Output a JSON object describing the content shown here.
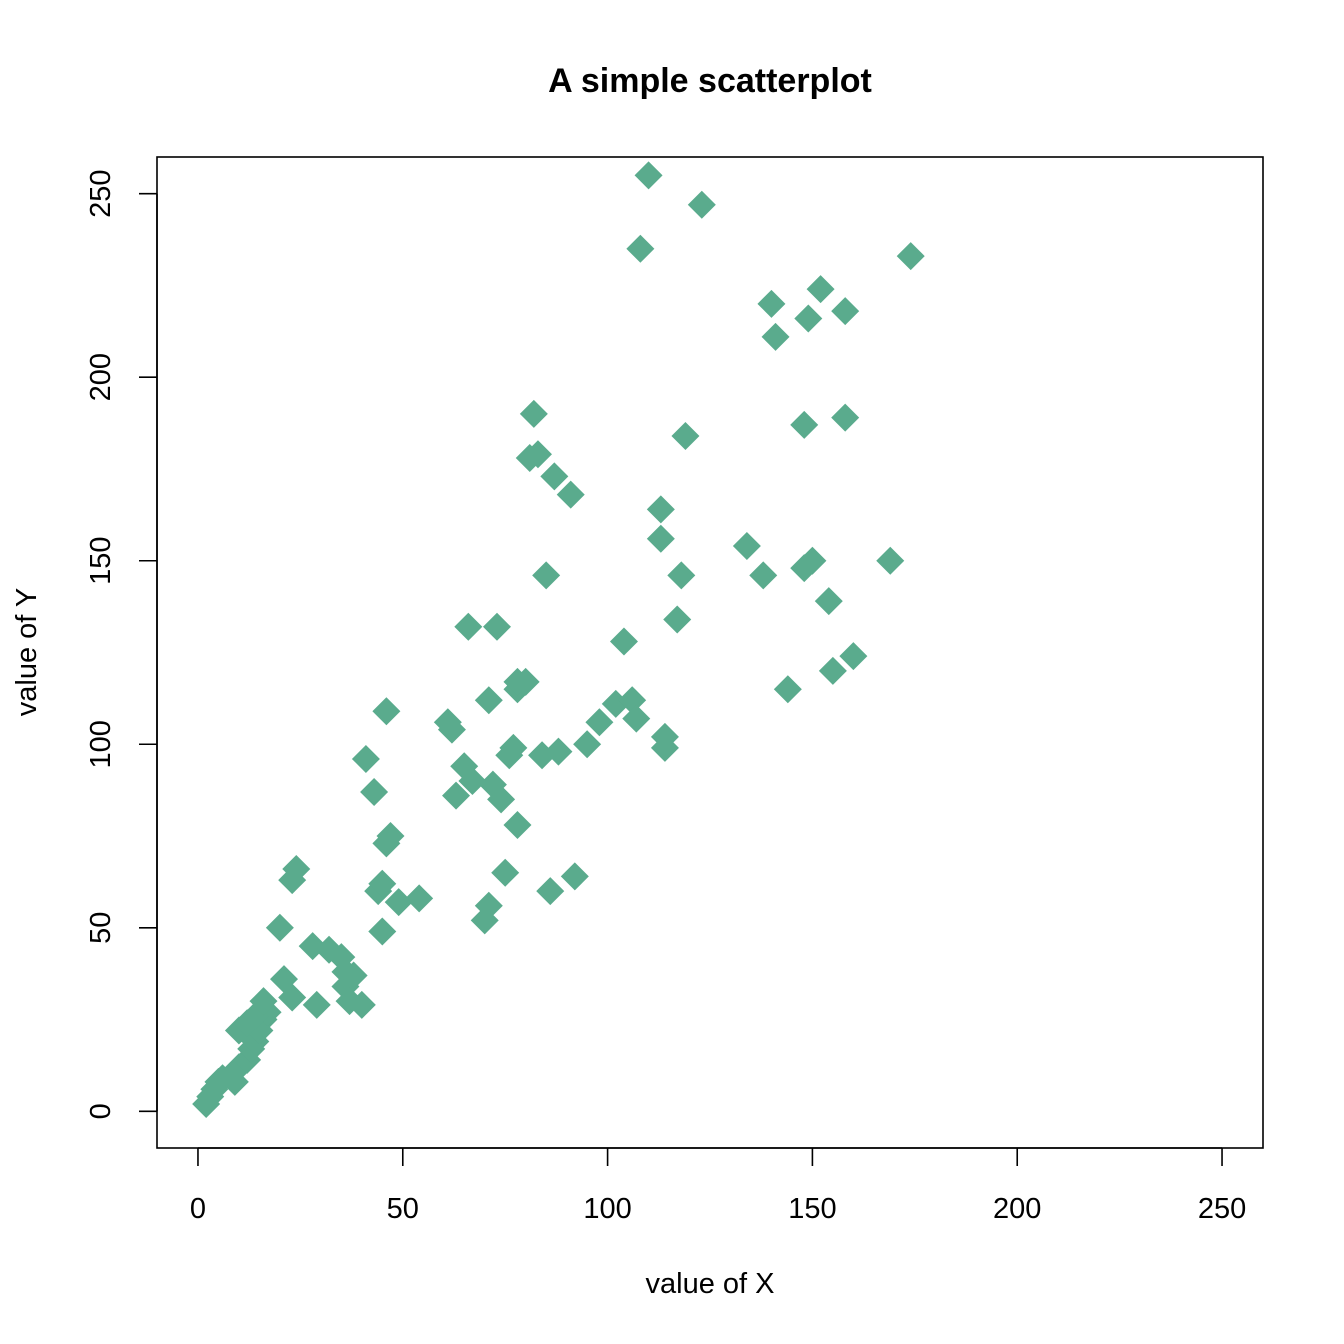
{
  "chart_data": {
    "type": "scatter",
    "title": "A simple scatterplot",
    "xlabel": "value of X",
    "ylabel": "value of Y",
    "xlim": [
      -10,
      260
    ],
    "ylim": [
      -10,
      260
    ],
    "xticks": [
      0,
      50,
      100,
      150,
      200,
      250
    ],
    "yticks": [
      0,
      50,
      100,
      150,
      200,
      250
    ],
    "marker": "diamond",
    "color": "#5aab8d",
    "grid": false,
    "points": [
      [
        2,
        2
      ],
      [
        3,
        4
      ],
      [
        4,
        6
      ],
      [
        5,
        8
      ],
      [
        6,
        9
      ],
      [
        9,
        8
      ],
      [
        10,
        12
      ],
      [
        12,
        14
      ],
      [
        13,
        17
      ],
      [
        14,
        19
      ],
      [
        15,
        22
      ],
      [
        16,
        25
      ],
      [
        17,
        27
      ],
      [
        10,
        22
      ],
      [
        12,
        24
      ],
      [
        14,
        26
      ],
      [
        16,
        30
      ],
      [
        20,
        50
      ],
      [
        21,
        36
      ],
      [
        23,
        31
      ],
      [
        23,
        63
      ],
      [
        24,
        66
      ],
      [
        28,
        45
      ],
      [
        29,
        29
      ],
      [
        32,
        44
      ],
      [
        35,
        42
      ],
      [
        36,
        38
      ],
      [
        36,
        34
      ],
      [
        37,
        30
      ],
      [
        38,
        37
      ],
      [
        40,
        29
      ],
      [
        41,
        96
      ],
      [
        43,
        87
      ],
      [
        44,
        60
      ],
      [
        45,
        62
      ],
      [
        45,
        49
      ],
      [
        46,
        109
      ],
      [
        46,
        73
      ],
      [
        47,
        75
      ],
      [
        49,
        57
      ],
      [
        54,
        58
      ],
      [
        61,
        106
      ],
      [
        62,
        104
      ],
      [
        63,
        86
      ],
      [
        65,
        94
      ],
      [
        66,
        132
      ],
      [
        67,
        90
      ],
      [
        70,
        52
      ],
      [
        71,
        56
      ],
      [
        71,
        112
      ],
      [
        72,
        89
      ],
      [
        73,
        132
      ],
      [
        74,
        85
      ],
      [
        75,
        65
      ],
      [
        76,
        97
      ],
      [
        77,
        99
      ],
      [
        78,
        78
      ],
      [
        78,
        115
      ],
      [
        78,
        117
      ],
      [
        80,
        117
      ],
      [
        81,
        178
      ],
      [
        82,
        190
      ],
      [
        83,
        179
      ],
      [
        84,
        97
      ],
      [
        85,
        146
      ],
      [
        86,
        60
      ],
      [
        87,
        173
      ],
      [
        88,
        98
      ],
      [
        91,
        168
      ],
      [
        92,
        64
      ],
      [
        95,
        100
      ],
      [
        98,
        106
      ],
      [
        102,
        111
      ],
      [
        104,
        128
      ],
      [
        106,
        112
      ],
      [
        107,
        107
      ],
      [
        108,
        235
      ],
      [
        110,
        255
      ],
      [
        113,
        164
      ],
      [
        113,
        156
      ],
      [
        114,
        102
      ],
      [
        114,
        99
      ],
      [
        117,
        134
      ],
      [
        118,
        146
      ],
      [
        119,
        184
      ],
      [
        123,
        247
      ],
      [
        134,
        154
      ],
      [
        138,
        146
      ],
      [
        140,
        220
      ],
      [
        141,
        211
      ],
      [
        144,
        115
      ],
      [
        148,
        148
      ],
      [
        148,
        187
      ],
      [
        149,
        216
      ],
      [
        150,
        150
      ],
      [
        152,
        224
      ],
      [
        154,
        139
      ],
      [
        155,
        120
      ],
      [
        158,
        218
      ],
      [
        158,
        189
      ],
      [
        160,
        124
      ],
      [
        169,
        150
      ],
      [
        174,
        233
      ]
    ]
  }
}
